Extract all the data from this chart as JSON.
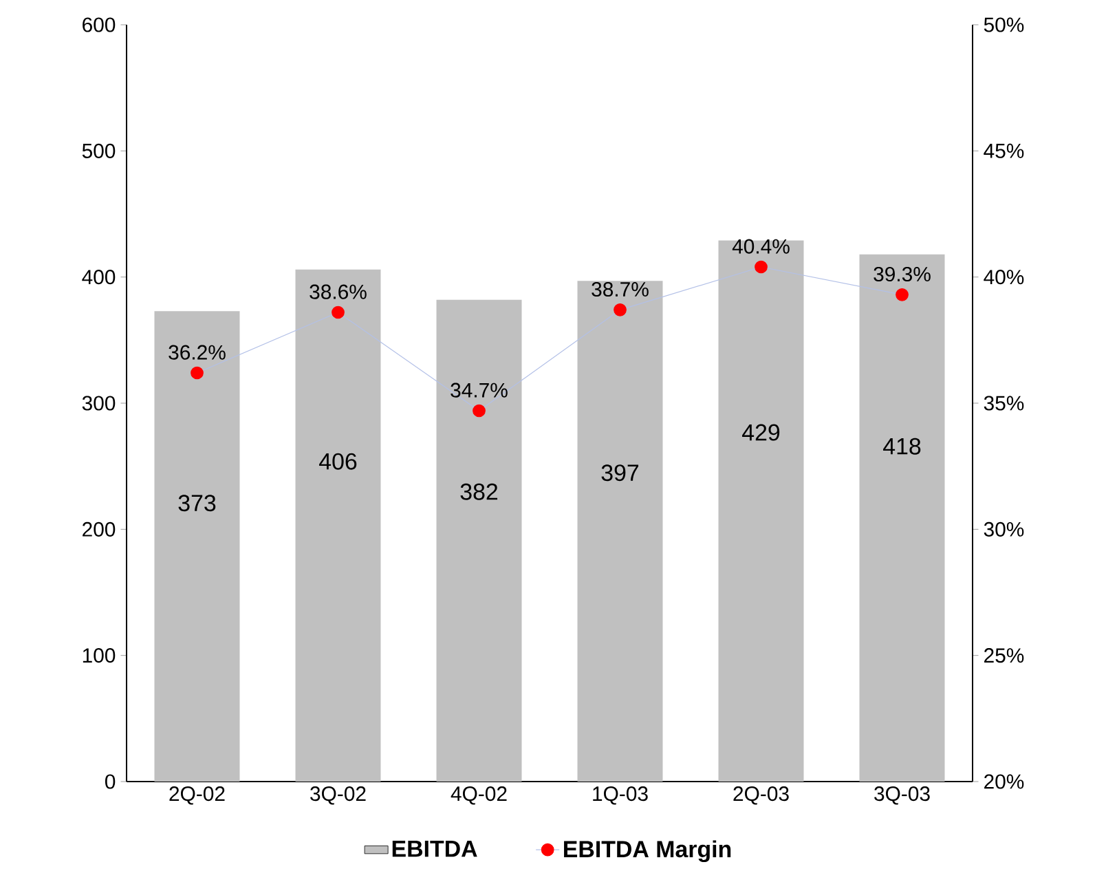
{
  "chart_data": {
    "type": "bar",
    "categories": [
      "2Q-02",
      "3Q-02",
      "4Q-02",
      "1Q-03",
      "2Q-03",
      "3Q-03"
    ],
    "series": [
      {
        "name": "EBITDA",
        "color": "#c0c0c0",
        "values": [
          373,
          406,
          382,
          397,
          429,
          418
        ],
        "value_labels": [
          "373",
          "406",
          "382",
          "397",
          "429",
          "418"
        ]
      },
      {
        "name": "EBITDA Margin",
        "type": "line",
        "axis": "y2",
        "color": "#ff0000",
        "marker": "circle",
        "values": [
          36.2,
          38.6,
          34.7,
          38.7,
          40.4,
          39.3
        ],
        "value_labels": [
          "36.2%",
          "38.6%",
          "34.7%",
          "38.7%",
          "40.4%",
          "39.3%"
        ]
      }
    ],
    "ylim": [
      0,
      600
    ],
    "yticks": [
      0,
      100,
      200,
      300,
      400,
      500,
      600
    ],
    "y2lim": [
      20,
      50
    ],
    "y2ticks": [
      {
        "value": 20,
        "label": "20%"
      },
      {
        "value": 25,
        "label": "25%"
      },
      {
        "value": 30,
        "label": "30%"
      },
      {
        "value": 35,
        "label": "35%"
      },
      {
        "value": 40,
        "label": "40%"
      },
      {
        "value": 45,
        "label": "45%"
      },
      {
        "value": 50,
        "label": "50%"
      }
    ],
    "legend": "bottom"
  }
}
